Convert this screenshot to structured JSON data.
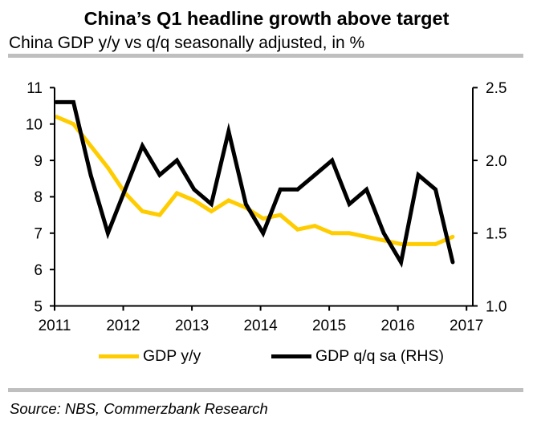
{
  "chart_data": {
    "type": "line",
    "title": "China’s Q1 headline growth above target",
    "subtitle": "China GDP y/y vs q/q seasonally adjusted, in %",
    "source": "Source: NBS, Commerzbank Research",
    "grid": false,
    "x_axis": {
      "label": "",
      "range": [
        2011,
        2017
      ],
      "ticks": [
        "2011",
        "2012",
        "2013",
        "2014",
        "2015",
        "2016",
        "2017"
      ]
    },
    "y_axis_left": {
      "label": "",
      "range": [
        5,
        11
      ],
      "ticks": [
        "5",
        "6",
        "7",
        "8",
        "9",
        "10",
        "11"
      ]
    },
    "y_axis_right": {
      "label": "",
      "range": [
        1.0,
        2.5
      ],
      "ticks": [
        "1.0",
        "1.5",
        "2.0",
        "2.5"
      ]
    },
    "x": [
      "2011Q1",
      "2011Q2",
      "2011Q3",
      "2011Q4",
      "2012Q1",
      "2012Q2",
      "2012Q3",
      "2012Q4",
      "2013Q1",
      "2013Q2",
      "2013Q3",
      "2013Q4",
      "2014Q1",
      "2014Q2",
      "2014Q3",
      "2014Q4",
      "2015Q1",
      "2015Q2",
      "2015Q3",
      "2015Q4",
      "2016Q1",
      "2016Q2",
      "2016Q3",
      "2016Q4"
    ],
    "series": [
      {
        "name": "GDP y/y",
        "axis": "left",
        "color": "#FFCC00",
        "values": [
          10.2,
          10.0,
          9.4,
          8.8,
          8.1,
          7.6,
          7.5,
          8.1,
          7.9,
          7.6,
          7.9,
          7.7,
          7.4,
          7.5,
          7.1,
          7.2,
          7.0,
          7.0,
          6.9,
          6.8,
          6.7,
          6.7,
          6.7,
          6.9
        ]
      },
      {
        "name": "GDP q/q sa (RHS)",
        "axis": "right",
        "color": "#000000",
        "values": [
          2.4,
          2.4,
          1.9,
          1.5,
          1.8,
          2.1,
          1.9,
          2.0,
          1.8,
          1.7,
          2.2,
          1.7,
          1.5,
          1.8,
          1.8,
          1.9,
          2.0,
          1.7,
          1.8,
          1.5,
          1.3,
          1.9,
          1.8,
          1.3
        ]
      }
    ],
    "legend": {
      "position": "bottom"
    }
  }
}
